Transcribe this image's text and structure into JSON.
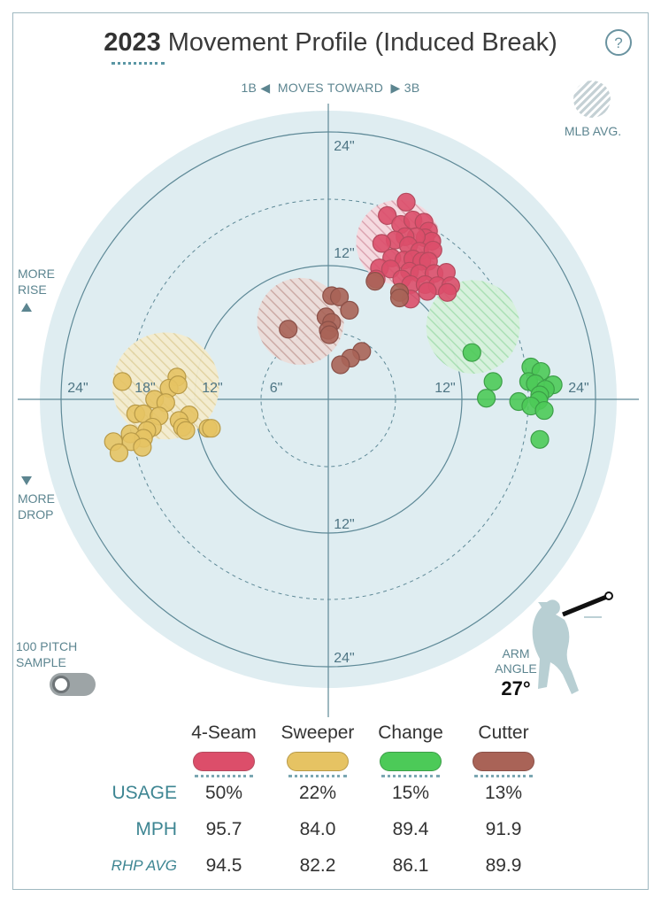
{
  "title": {
    "year": "2023",
    "text": "Movement Profile (Induced Break)"
  },
  "help_label": "?",
  "header": {
    "left": "1B",
    "middle": "MOVES TOWARD",
    "right": "3B"
  },
  "mlb_avg_label": "MLB AVG.",
  "side_labels": {
    "rise_1": "MORE",
    "rise_2": "RISE",
    "drop_1": "MORE",
    "drop_2": "DROP"
  },
  "sample": {
    "line1": "100 PITCH",
    "line2": "SAMPLE",
    "enabled": false
  },
  "arm_angle": {
    "line1": "ARM",
    "line2": "ANGLE",
    "value": "27°",
    "degrees": 27
  },
  "colors": {
    "ring_fill": "#dfedf1",
    "ring_stroke": "#4e7c8a",
    "4-Seam": "#dc4e6a",
    "Sweeper": "#e6c363",
    "Change": "#4cca58",
    "Cutter": "#a96357"
  },
  "chart_data": {
    "type": "scatter",
    "title": "2023 Movement Profile (Induced Break)",
    "x_range_in": [
      -24,
      24
    ],
    "y_range_in": [
      -24,
      24
    ],
    "ring_labels": {
      "positive_y": [
        "24\"",
        "12\""
      ],
      "negative_y": [
        "12\"",
        "24\""
      ],
      "negative_x": [
        "24\"",
        "18\"",
        "12\"",
        "6\""
      ],
      "positive_x": [
        "12\"",
        "24\""
      ]
    },
    "mlb_avg": [
      {
        "pitch": "4-Seam",
        "x": 6.3,
        "y": 14.1,
        "r": 3.8
      },
      {
        "pitch": "Sweeper",
        "x": -14.6,
        "y": 1.2,
        "r": 4.8
      },
      {
        "pitch": "Change",
        "x": 13.0,
        "y": 6.5,
        "r": 4.2
      },
      {
        "pitch": "Cutter",
        "x": -2.5,
        "y": 7.0,
        "r": 3.9
      }
    ],
    "series": [
      {
        "name": "4-Seam",
        "points": [
          [
            7.0,
            17.7
          ],
          [
            5.3,
            16.5
          ],
          [
            6.5,
            15.7
          ],
          [
            7.6,
            16.1
          ],
          [
            8.6,
            15.9
          ],
          [
            9.0,
            15.1
          ],
          [
            8.7,
            14.5
          ],
          [
            9.3,
            14.2
          ],
          [
            7.9,
            14.6
          ],
          [
            6.9,
            14.6
          ],
          [
            6.0,
            14.3
          ],
          [
            4.8,
            14.0
          ],
          [
            7.2,
            13.8
          ],
          [
            8.2,
            13.3
          ],
          [
            9.4,
            13.4
          ],
          [
            5.7,
            12.7
          ],
          [
            6.8,
            12.5
          ],
          [
            7.6,
            12.6
          ],
          [
            8.4,
            12.4
          ],
          [
            9.0,
            12.4
          ],
          [
            4.6,
            11.8
          ],
          [
            5.6,
            11.7
          ],
          [
            7.3,
            11.5
          ],
          [
            8.2,
            11.3
          ],
          [
            9.5,
            11.3
          ],
          [
            10.6,
            11.4
          ],
          [
            4.3,
            10.8
          ],
          [
            6.6,
            10.8
          ],
          [
            7.4,
            10.3
          ],
          [
            8.7,
            10.3
          ],
          [
            9.8,
            10.2
          ],
          [
            11.0,
            10.2
          ],
          [
            10.7,
            9.6
          ],
          [
            8.9,
            9.7
          ],
          [
            7.4,
            9.0
          ]
        ]
      },
      {
        "name": "Sweeper",
        "points": [
          [
            -13.6,
            2.0
          ],
          [
            -18.5,
            1.6
          ],
          [
            -14.3,
            1.0
          ],
          [
            -13.5,
            1.3
          ],
          [
            -15.6,
            0.0
          ],
          [
            -14.6,
            -0.3
          ],
          [
            -17.3,
            -1.3
          ],
          [
            -16.6,
            -1.3
          ],
          [
            -12.5,
            -1.4
          ],
          [
            -15.2,
            -1.5
          ],
          [
            -13.4,
            -1.9
          ],
          [
            -13.1,
            -2.5
          ],
          [
            -15.8,
            -2.5
          ],
          [
            -10.8,
            -2.6
          ],
          [
            -10.5,
            -2.6
          ],
          [
            -16.3,
            -2.8
          ],
          [
            -12.8,
            -2.8
          ],
          [
            -17.8,
            -3.1
          ],
          [
            -16.6,
            -3.5
          ],
          [
            -19.3,
            -3.8
          ],
          [
            -17.7,
            -3.8
          ],
          [
            -16.7,
            -4.3
          ],
          [
            -18.8,
            -4.8
          ]
        ]
      },
      {
        "name": "Change",
        "points": [
          [
            12.9,
            4.2
          ],
          [
            18.2,
            2.9
          ],
          [
            19.1,
            2.5
          ],
          [
            14.8,
            1.6
          ],
          [
            18.0,
            1.6
          ],
          [
            18.6,
            1.4
          ],
          [
            20.2,
            1.3
          ],
          [
            19.5,
            0.9
          ],
          [
            14.2,
            0.1
          ],
          [
            19.0,
            0.4
          ],
          [
            18.9,
            -0.1
          ],
          [
            17.1,
            -0.2
          ],
          [
            18.2,
            -0.6
          ],
          [
            19.4,
            -1.0
          ],
          [
            19.0,
            -3.6
          ]
        ]
      },
      {
        "name": "Cutter",
        "points": [
          [
            4.2,
            10.6
          ],
          [
            6.4,
            9.6
          ],
          [
            6.4,
            9.1
          ],
          [
            0.3,
            9.3
          ],
          [
            1.0,
            9.2
          ],
          [
            1.9,
            8.0
          ],
          [
            -0.2,
            7.4
          ],
          [
            0.3,
            6.9
          ],
          [
            -3.6,
            6.3
          ],
          [
            0.0,
            6.2
          ],
          [
            0.1,
            5.8
          ],
          [
            3.0,
            4.3
          ],
          [
            2.0,
            3.7
          ],
          [
            1.1,
            3.1
          ]
        ]
      }
    ]
  },
  "legend": [
    {
      "name": "4-Seam",
      "color": "#dc4e6a",
      "border": "#b44a5e"
    },
    {
      "name": "Sweeper",
      "color": "#e6c363",
      "border": "#b89a48"
    },
    {
      "name": "Change",
      "color": "#4cca58",
      "border": "#3c9e48"
    },
    {
      "name": "Cutter",
      "color": "#a96357",
      "border": "#8a5048"
    }
  ],
  "table": {
    "usage_label": "USAGE",
    "mph_label": "MPH",
    "rhp_label": "RHP AVG",
    "usage": [
      "50%",
      "22%",
      "15%",
      "13%"
    ],
    "mph": [
      "95.7",
      "84.0",
      "89.4",
      "91.9"
    ],
    "rhp_avg": [
      "94.5",
      "82.2",
      "86.1",
      "89.9"
    ]
  }
}
